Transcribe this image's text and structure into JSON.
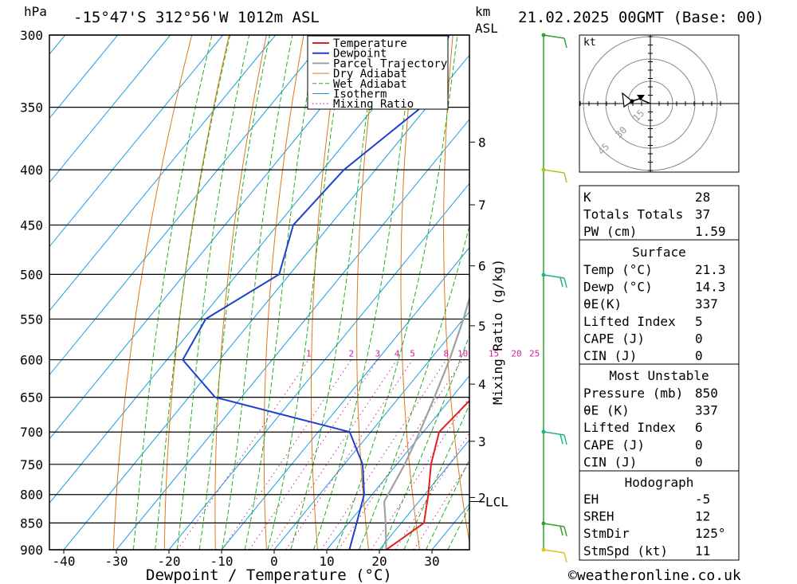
{
  "header": {
    "pressure_unit": "hPa",
    "location": "-15°47'S  312°56'W  1012m  ASL",
    "km_label": "km",
    "asl_label": "ASL",
    "datetime": "21.02.2025  00GMT  (Base: 00)"
  },
  "chart_data": {
    "type": "line",
    "title": "-15°47'S  312°56'W  1012m  ASL",
    "xlabel": "Dewpoint / Temperature (°C)",
    "ylabel": "hPa",
    "y_scale": "log",
    "xlim": [
      -44,
      37
    ],
    "ylim": [
      900,
      300
    ],
    "pressure_levels": [
      300,
      350,
      400,
      450,
      500,
      550,
      600,
      650,
      700,
      750,
      800,
      850,
      900
    ],
    "temperature_ticks": [
      -40,
      -30,
      -20,
      -10,
      0,
      10,
      20,
      30
    ],
    "km_ticks": [
      {
        "km": "8",
        "p": 377
      },
      {
        "km": "7",
        "p": 431
      },
      {
        "km": "6",
        "p": 491
      },
      {
        "km": "5",
        "p": 558
      },
      {
        "km": "4",
        "p": 632
      },
      {
        "km": "3",
        "p": 714
      },
      {
        "km": "2",
        "p": 805
      }
    ],
    "lcl": {
      "label": "LCL",
      "p": 812
    },
    "mixing_ratio_label": "Mixing Ratio (g/kg)",
    "mixing_ratio_values": [
      "1",
      "2",
      "3",
      "4",
      "5",
      "8",
      "10",
      "15",
      "20",
      "25"
    ],
    "legend": [
      "Temperature",
      "Dewpoint",
      "Parcel Trajectory",
      "Dry Adiabat",
      "Wet Adiabat",
      "Isotherm",
      "Mixing Ratio"
    ],
    "series": [
      {
        "name": "Temperature",
        "color": "#e02020",
        "points": [
          [
            21.3,
            900
          ],
          [
            24.3,
            850
          ],
          [
            20.7,
            800
          ],
          [
            16.5,
            750
          ],
          [
            13,
            700
          ],
          [
            14,
            650
          ],
          [
            10.5,
            600
          ],
          [
            7.5,
            550
          ],
          [
            3.5,
            500
          ],
          [
            -3.5,
            450
          ],
          [
            -11,
            400
          ],
          [
            -22,
            350
          ],
          [
            -33.5,
            300
          ]
        ]
      },
      {
        "name": "Dewpoint",
        "color": "#1f3fd0",
        "points": [
          [
            14.3,
            900
          ],
          [
            11.5,
            850
          ],
          [
            8.5,
            800
          ],
          [
            3.5,
            750
          ],
          [
            -4,
            700
          ],
          [
            -35,
            650
          ],
          [
            -47,
            600
          ],
          [
            -49,
            550
          ],
          [
            -42,
            500
          ],
          [
            -47,
            450
          ],
          [
            -46,
            400
          ],
          [
            -41,
            350
          ],
          [
            -47,
            300
          ]
        ]
      },
      {
        "name": "Parcel Trajectory",
        "color": "#a0a0a0",
        "points": [
          [
            21.3,
            900
          ],
          [
            17,
            850
          ],
          [
            13.4,
            812
          ],
          [
            11.5,
            750
          ],
          [
            9.3,
            700
          ],
          [
            6.7,
            650
          ],
          [
            3.7,
            600
          ],
          [
            0,
            550
          ],
          [
            -4.5,
            500
          ],
          [
            -10,
            450
          ],
          [
            -17,
            400
          ],
          [
            -26,
            350
          ],
          [
            -38,
            300
          ]
        ]
      }
    ]
  },
  "hodograph": {
    "unit_label": "kt",
    "ring_labels": [
      "15",
      "30",
      "45"
    ]
  },
  "indices": {
    "rows": [
      {
        "label": "K",
        "value": "28"
      },
      {
        "label": "Totals Totals",
        "value": "37"
      },
      {
        "label": "PW (cm)",
        "value": "1.59"
      }
    ]
  },
  "surface": {
    "header": "Surface",
    "rows": [
      {
        "label": "Temp (°C)",
        "value": "21.3"
      },
      {
        "label": "Dewp (°C)",
        "value": "14.3"
      },
      {
        "label": "θE(K)",
        "value": "337"
      },
      {
        "label": "Lifted Index",
        "value": "5"
      },
      {
        "label": "CAPE (J)",
        "value": "0"
      },
      {
        "label": "CIN (J)",
        "value": "0"
      }
    ]
  },
  "most_unstable": {
    "header": "Most Unstable",
    "rows": [
      {
        "label": "Pressure (mb)",
        "value": "850"
      },
      {
        "label": "θE (K)",
        "value": "337"
      },
      {
        "label": "Lifted Index",
        "value": "6"
      },
      {
        "label": "CAPE (J)",
        "value": "0"
      },
      {
        "label": "CIN (J)",
        "value": "0"
      }
    ]
  },
  "hodograph_table": {
    "header": "Hodograph",
    "rows": [
      {
        "label": "EH",
        "value": "-5"
      },
      {
        "label": "SREH",
        "value": "12"
      },
      {
        "label": "StmDir",
        "value": "125°"
      },
      {
        "label": "StmSpd (kt)",
        "value": "11"
      }
    ]
  },
  "footer": {
    "copyright": "©weatheronline.co.uk"
  }
}
